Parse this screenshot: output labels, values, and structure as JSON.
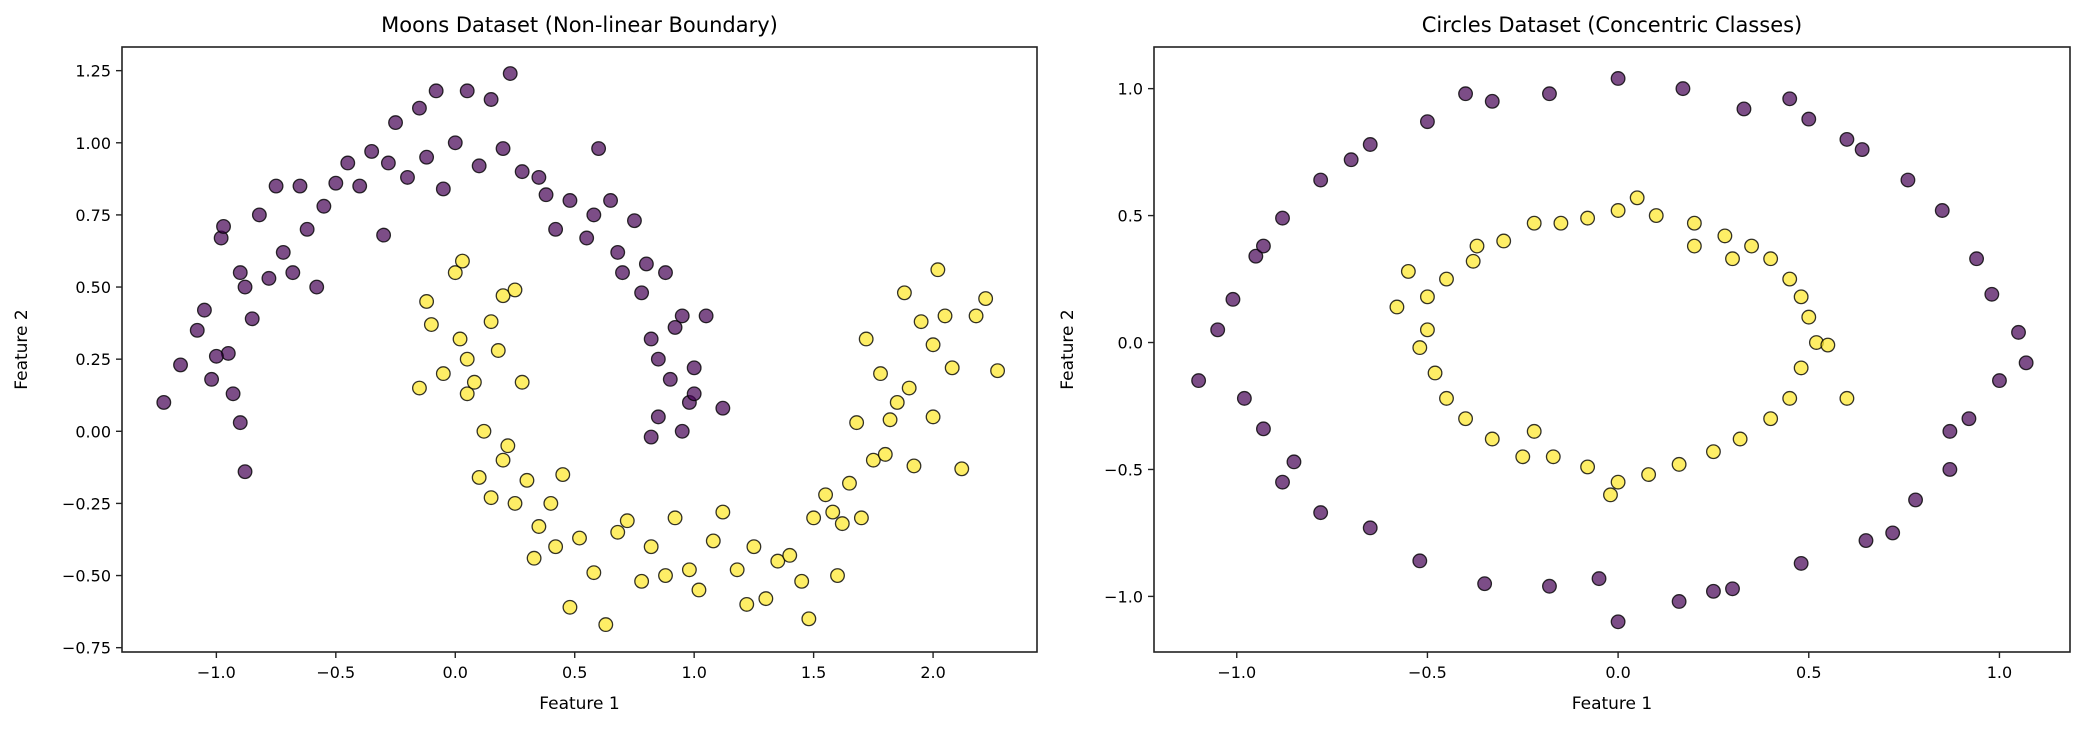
{
  "chart_data": [
    {
      "type": "scatter",
      "title": "Moons Dataset (Non-linear Boundary)",
      "xlabel": "Feature 1",
      "ylabel": "Feature 2",
      "xlim": [
        -1.395,
        2.435
      ],
      "ylim": [
        -0.765,
        1.332
      ],
      "xticks": [
        -1.0,
        -0.5,
        0.0,
        0.5,
        1.0,
        1.5,
        2.0
      ],
      "xtick_labels": [
        "−1.0",
        "−0.5",
        "0.0",
        "0.5",
        "1.0",
        "1.5",
        "2.0"
      ],
      "yticks": [
        -0.75,
        -0.5,
        -0.25,
        0.0,
        0.25,
        0.5,
        0.75,
        1.0,
        1.25
      ],
      "ytick_labels": [
        "−0.75",
        "−0.50",
        "−0.25",
        "0.00",
        "0.25",
        "0.50",
        "0.75",
        "1.00",
        "1.25"
      ],
      "grid": false,
      "series": [
        {
          "color": "#440154",
          "points": [
            [
              -1.22,
              0.1
            ],
            [
              -1.15,
              0.23
            ],
            [
              -1.08,
              0.35
            ],
            [
              -1.05,
              0.42
            ],
            [
              -1.02,
              0.18
            ],
            [
              -0.98,
              0.67
            ],
            [
              -0.97,
              0.71
            ],
            [
              -0.95,
              0.27
            ],
            [
              -0.93,
              0.13
            ],
            [
              -0.9,
              0.03
            ],
            [
              -0.88,
              -0.14
            ],
            [
              -0.88,
              0.5
            ],
            [
              -0.85,
              0.39
            ],
            [
              -0.82,
              0.75
            ],
            [
              -0.78,
              0.53
            ],
            [
              -0.75,
              0.85
            ],
            [
              -0.72,
              0.62
            ],
            [
              -0.68,
              0.55
            ],
            [
              -0.65,
              0.85
            ],
            [
              -0.62,
              0.7
            ],
            [
              -0.58,
              0.5
            ],
            [
              -0.55,
              0.78
            ],
            [
              -0.5,
              0.86
            ],
            [
              -0.45,
              0.93
            ],
            [
              -0.4,
              0.85
            ],
            [
              -0.35,
              0.97
            ],
            [
              -0.3,
              0.68
            ],
            [
              -0.28,
              0.93
            ],
            [
              -0.25,
              1.07
            ],
            [
              -0.2,
              0.88
            ],
            [
              -0.15,
              1.12
            ],
            [
              -0.12,
              0.95
            ],
            [
              -0.08,
              1.18
            ],
            [
              -0.05,
              0.84
            ],
            [
              0.0,
              1.0
            ],
            [
              0.05,
              1.18
            ],
            [
              0.1,
              0.92
            ],
            [
              0.15,
              1.15
            ],
            [
              0.2,
              0.98
            ],
            [
              0.23,
              1.24
            ],
            [
              0.28,
              0.9
            ],
            [
              0.35,
              0.88
            ],
            [
              0.38,
              0.82
            ],
            [
              0.42,
              0.7
            ],
            [
              0.48,
              0.8
            ],
            [
              0.55,
              0.67
            ],
            [
              0.6,
              0.98
            ],
            [
              0.65,
              0.8
            ],
            [
              0.7,
              0.55
            ],
            [
              0.75,
              0.73
            ],
            [
              0.78,
              0.48
            ],
            [
              0.8,
              0.58
            ],
            [
              0.82,
              0.32
            ],
            [
              0.85,
              0.25
            ],
            [
              0.88,
              0.55
            ],
            [
              0.9,
              0.18
            ],
            [
              0.92,
              0.36
            ],
            [
              0.95,
              0.4
            ],
            [
              0.98,
              0.1
            ],
            [
              1.0,
              0.22
            ],
            [
              1.05,
              0.4
            ],
            [
              0.85,
              0.05
            ],
            [
              0.95,
              0.0
            ],
            [
              1.0,
              0.13
            ],
            [
              0.82,
              -0.02
            ],
            [
              1.12,
              0.08
            ],
            [
              -0.9,
              0.55
            ],
            [
              -1.0,
              0.26
            ],
            [
              0.58,
              0.75
            ],
            [
              0.68,
              0.62
            ]
          ]
        },
        {
          "color": "#fde725",
          "points": [
            [
              -0.15,
              0.15
            ],
            [
              -0.12,
              0.45
            ],
            [
              -0.1,
              0.37
            ],
            [
              -0.05,
              0.2
            ],
            [
              0.0,
              0.55
            ],
            [
              0.02,
              0.32
            ],
            [
              0.03,
              0.59
            ],
            [
              0.05,
              0.25
            ],
            [
              0.05,
              0.13
            ],
            [
              0.08,
              0.17
            ],
            [
              0.12,
              0.0
            ],
            [
              0.15,
              0.38
            ],
            [
              0.18,
              0.28
            ],
            [
              0.2,
              0.47
            ],
            [
              0.22,
              -0.05
            ],
            [
              0.25,
              0.49
            ],
            [
              0.28,
              0.17
            ],
            [
              0.1,
              -0.16
            ],
            [
              0.15,
              -0.23
            ],
            [
              0.2,
              -0.1
            ],
            [
              0.25,
              -0.25
            ],
            [
              0.3,
              -0.17
            ],
            [
              0.33,
              -0.44
            ],
            [
              0.35,
              -0.33
            ],
            [
              0.4,
              -0.25
            ],
            [
              0.42,
              -0.4
            ],
            [
              0.45,
              -0.15
            ],
            [
              0.48,
              -0.61
            ],
            [
              0.52,
              -0.37
            ],
            [
              0.58,
              -0.49
            ],
            [
              0.63,
              -0.67
            ],
            [
              0.68,
              -0.35
            ],
            [
              0.72,
              -0.31
            ],
            [
              0.78,
              -0.52
            ],
            [
              0.82,
              -0.4
            ],
            [
              0.88,
              -0.5
            ],
            [
              0.92,
              -0.3
            ],
            [
              0.98,
              -0.48
            ],
            [
              1.02,
              -0.55
            ],
            [
              1.08,
              -0.38
            ],
            [
              1.12,
              -0.28
            ],
            [
              1.18,
              -0.48
            ],
            [
              1.22,
              -0.6
            ],
            [
              1.25,
              -0.4
            ],
            [
              1.3,
              -0.58
            ],
            [
              1.35,
              -0.45
            ],
            [
              1.4,
              -0.43
            ],
            [
              1.45,
              -0.52
            ],
            [
              1.48,
              -0.65
            ],
            [
              1.5,
              -0.3
            ],
            [
              1.55,
              -0.22
            ],
            [
              1.6,
              -0.5
            ],
            [
              1.62,
              -0.32
            ],
            [
              1.65,
              -0.18
            ],
            [
              1.68,
              0.03
            ],
            [
              1.72,
              0.32
            ],
            [
              1.75,
              -0.1
            ],
            [
              1.78,
              0.2
            ],
            [
              1.8,
              -0.08
            ],
            [
              1.85,
              0.1
            ],
            [
              1.88,
              0.48
            ],
            [
              1.9,
              0.15
            ],
            [
              1.95,
              0.38
            ],
            [
              2.0,
              0.3
            ],
            [
              2.02,
              0.56
            ],
            [
              2.05,
              0.4
            ],
            [
              2.08,
              0.22
            ],
            [
              2.12,
              -0.13
            ],
            [
              2.18,
              0.4
            ],
            [
              2.22,
              0.46
            ],
            [
              2.27,
              0.21
            ],
            [
              1.7,
              -0.3
            ],
            [
              1.58,
              -0.28
            ],
            [
              1.92,
              -0.12
            ],
            [
              1.82,
              0.04
            ],
            [
              2.0,
              0.05
            ]
          ]
        }
      ]
    },
    {
      "type": "scatter",
      "title": "Circles Dataset (Concentric Classes)",
      "xlabel": "Feature 1",
      "ylabel": "Feature 2",
      "xlim": [
        -1.217,
        1.185
      ],
      "ylim": [
        -1.219,
        1.164
      ],
      "xticks": [
        -1.0,
        -0.5,
        0.0,
        0.5,
        1.0
      ],
      "xtick_labels": [
        "−1.0",
        "−0.5",
        "0.0",
        "0.5",
        "1.0"
      ],
      "yticks": [
        -1.0,
        -0.5,
        0.0,
        0.5,
        1.0
      ],
      "ytick_labels": [
        "−1.0",
        "−0.5",
        "0.0",
        "0.5",
        "1.0"
      ],
      "grid": false,
      "series": [
        {
          "color": "#440154",
          "points": [
            [
              1.07,
              -0.08
            ],
            [
              0.98,
              0.19
            ],
            [
              0.94,
              0.33
            ],
            [
              0.85,
              0.52
            ],
            [
              0.76,
              0.64
            ],
            [
              0.64,
              0.76
            ],
            [
              0.5,
              0.88
            ],
            [
              0.33,
              0.92
            ],
            [
              0.17,
              1.0
            ],
            [
              0.0,
              1.04
            ],
            [
              -0.18,
              0.98
            ],
            [
              -0.33,
              0.95
            ],
            [
              -0.5,
              0.87
            ],
            [
              -0.65,
              0.78
            ],
            [
              -0.78,
              0.64
            ],
            [
              -0.88,
              0.49
            ],
            [
              -0.95,
              0.34
            ],
            [
              -1.01,
              0.17
            ],
            [
              -1.1,
              -0.15
            ],
            [
              -0.98,
              -0.22
            ],
            [
              -0.93,
              -0.34
            ],
            [
              -0.85,
              -0.47
            ],
            [
              -0.78,
              -0.67
            ],
            [
              -0.65,
              -0.73
            ],
            [
              -0.52,
              -0.86
            ],
            [
              -0.35,
              -0.95
            ],
            [
              -0.18,
              -0.96
            ],
            [
              0.0,
              -1.1
            ],
            [
              0.16,
              -1.02
            ],
            [
              0.3,
              -0.97
            ],
            [
              0.48,
              -0.87
            ],
            [
              0.65,
              -0.78
            ],
            [
              0.78,
              -0.62
            ],
            [
              0.87,
              -0.5
            ],
            [
              0.92,
              -0.3
            ],
            [
              1.0,
              -0.15
            ],
            [
              -0.93,
              0.38
            ],
            [
              0.45,
              0.96
            ],
            [
              -0.4,
              0.98
            ],
            [
              0.87,
              -0.35
            ],
            [
              -0.05,
              -0.93
            ],
            [
              0.25,
              -0.98
            ],
            [
              -0.7,
              0.72
            ],
            [
              1.05,
              0.04
            ],
            [
              -1.05,
              0.05
            ],
            [
              0.6,
              0.8
            ],
            [
              -0.88,
              -0.55
            ],
            [
              0.72,
              -0.75
            ]
          ]
        },
        {
          "color": "#fde725",
          "points": [
            [
              0.52,
              0.0
            ],
            [
              0.5,
              0.1
            ],
            [
              0.48,
              0.18
            ],
            [
              0.45,
              0.25
            ],
            [
              0.4,
              0.33
            ],
            [
              0.35,
              0.38
            ],
            [
              0.28,
              0.42
            ],
            [
              0.2,
              0.47
            ],
            [
              0.1,
              0.5
            ],
            [
              0.0,
              0.52
            ],
            [
              -0.08,
              0.49
            ],
            [
              -0.15,
              0.47
            ],
            [
              -0.22,
              0.47
            ],
            [
              -0.3,
              0.4
            ],
            [
              -0.38,
              0.32
            ],
            [
              -0.45,
              0.25
            ],
            [
              -0.5,
              0.18
            ],
            [
              -0.5,
              0.05
            ],
            [
              -0.52,
              -0.02
            ],
            [
              -0.48,
              -0.12
            ],
            [
              -0.45,
              -0.22
            ],
            [
              -0.4,
              -0.3
            ],
            [
              -0.33,
              -0.38
            ],
            [
              -0.25,
              -0.45
            ],
            [
              -0.17,
              -0.45
            ],
            [
              -0.08,
              -0.49
            ],
            [
              0.0,
              -0.55
            ],
            [
              0.08,
              -0.52
            ],
            [
              0.16,
              -0.48
            ],
            [
              0.25,
              -0.43
            ],
            [
              0.32,
              -0.38
            ],
            [
              0.4,
              -0.3
            ],
            [
              0.45,
              -0.22
            ],
            [
              0.48,
              -0.1
            ],
            [
              0.55,
              -0.01
            ],
            [
              -0.55,
              0.28
            ],
            [
              0.6,
              -0.22
            ],
            [
              -0.02,
              -0.6
            ],
            [
              0.05,
              0.57
            ],
            [
              -0.37,
              0.38
            ],
            [
              0.3,
              0.33
            ],
            [
              -0.22,
              -0.35
            ],
            [
              0.2,
              0.38
            ],
            [
              -0.58,
              0.14
            ]
          ]
        }
      ]
    }
  ]
}
